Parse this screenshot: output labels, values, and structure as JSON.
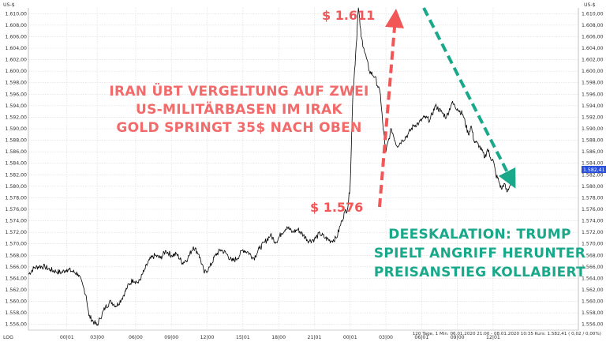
{
  "chart_data": {
    "type": "line",
    "axis_unit": "US-$",
    "corner_label": "LOG",
    "ylim": [
      1555,
      1611
    ],
    "y_ticks": [
      "1.556,00",
      "1.558,00",
      "1.560,00",
      "1.562,00",
      "1.564,00",
      "1.566,00",
      "1.568,00",
      "1.570,00",
      "1.572,00",
      "1.574,00",
      "1.576,00",
      "1.578,00",
      "1.580,00",
      "1.582,00",
      "1.584,00",
      "1.586,00",
      "1.588,00",
      "1.590,00",
      "1.592,00",
      "1.594,00",
      "1.596,00",
      "1.598,00",
      "1.600,00",
      "1.602,00",
      "1.604,00",
      "1.606,00",
      "1.608,00",
      "1.610,00"
    ],
    "y_tick_values": [
      1556,
      1558,
      1560,
      1562,
      1564,
      1566,
      1568,
      1570,
      1572,
      1574,
      1576,
      1578,
      1580,
      1582,
      1584,
      1586,
      1588,
      1590,
      1592,
      1594,
      1596,
      1598,
      1600,
      1602,
      1604,
      1606,
      1608,
      1610
    ],
    "x_ticks": [
      "00|01",
      "03|00",
      "06|00",
      "09|00",
      "12|00",
      "15|01",
      "18|00",
      "21|01",
      "00|01",
      "03|00",
      "06|01",
      "09|00",
      "12|01"
    ],
    "x_tick_values": [
      0.07,
      0.125,
      0.195,
      0.26,
      0.325,
      0.39,
      0.455,
      0.52,
      0.585,
      0.65,
      0.715,
      0.78,
      0.845
    ],
    "series": [
      {
        "x": [
          0.0,
          0.01,
          0.02,
          0.03,
          0.04,
          0.05,
          0.06,
          0.07,
          0.08,
          0.09,
          0.1,
          0.105,
          0.11,
          0.12,
          0.125,
          0.13,
          0.14,
          0.15,
          0.16,
          0.17,
          0.18,
          0.19,
          0.2,
          0.21,
          0.22,
          0.23,
          0.24,
          0.25,
          0.26,
          0.27,
          0.28,
          0.29,
          0.3,
          0.31,
          0.32,
          0.33,
          0.34,
          0.35,
          0.36,
          0.37,
          0.38,
          0.39,
          0.4,
          0.41,
          0.42,
          0.43,
          0.44,
          0.45,
          0.46,
          0.47,
          0.48,
          0.49,
          0.5,
          0.51,
          0.52,
          0.53,
          0.54,
          0.55,
          0.56,
          0.57,
          0.575,
          0.58,
          0.585,
          0.59,
          0.595,
          0.6,
          0.605,
          0.61,
          0.62,
          0.63,
          0.64,
          0.645,
          0.65,
          0.66,
          0.67,
          0.68,
          0.69,
          0.7,
          0.71,
          0.72,
          0.73,
          0.74,
          0.75,
          0.76,
          0.77,
          0.78,
          0.79,
          0.8,
          0.805,
          0.81,
          0.82,
          0.83,
          0.835,
          0.84,
          0.845,
          0.85,
          0.855,
          0.86,
          0.865,
          0.87,
          0.875,
          0.88
        ],
        "values": [
          1564.7,
          1565.8,
          1566.1,
          1566.0,
          1565.5,
          1565.2,
          1565.0,
          1565.6,
          1565.2,
          1564.8,
          1562.5,
          1561.0,
          1557.5,
          1556.3,
          1555.8,
          1557.0,
          1559.0,
          1560.0,
          1559.2,
          1560.5,
          1562.5,
          1563.8,
          1563.2,
          1565.2,
          1567.2,
          1568.0,
          1567.5,
          1568.8,
          1568.0,
          1568.2,
          1566.7,
          1567.5,
          1569.5,
          1568.2,
          1564.9,
          1566.0,
          1568.0,
          1569.0,
          1568.3,
          1567.0,
          1567.5,
          1569.0,
          1568.5,
          1567.5,
          1569.2,
          1570.3,
          1571.5,
          1570.3,
          1571.8,
          1573.0,
          1572.0,
          1572.5,
          1571.5,
          1570.5,
          1570.8,
          1571.8,
          1571.0,
          1570.5,
          1571.0,
          1574.0,
          1575.5,
          1576.0,
          1580.0,
          1596.0,
          1603.0,
          1611.0,
          1606.0,
          1604.0,
          1600.0,
          1599.0,
          1596.0,
          1590.0,
          1586.0,
          1590.0,
          1587.0,
          1588.0,
          1589.0,
          1590.5,
          1591.0,
          1592.0,
          1591.5,
          1594.0,
          1593.0,
          1592.0,
          1594.5,
          1593.5,
          1592.5,
          1589.0,
          1590.5,
          1588.0,
          1587.0,
          1585.0,
          1586.5,
          1585.0,
          1584.5,
          1582.0,
          1581.0,
          1579.5,
          1580.5,
          1579.0,
          1580.0,
          1582.4
        ]
      }
    ],
    "current_price_label": "1.582,41",
    "footer": "120 Tage, 1 Min. 06.01.2020 21:00 - 08.01.2020 10:35 Kurs: 1.582,41 ( 0,02 / 0,00%)",
    "annotations": {
      "red_lines": [
        "IRAN ÜBT VERGELTUNG AUF ZWEI",
        "US-MILITÄRBASEN IM IRAK",
        "GOLD SPRINGT 35$ NACH OBEN"
      ],
      "green_lines": [
        "DEESKALATION: TRUMP",
        "SPIELT ANGRIFF HERUNTER",
        "PREISANSTIEG KOLLABIERT"
      ],
      "low_price": "$ 1.576",
      "high_price": "$ 1.611"
    },
    "colors": {
      "line": "#000000",
      "red": "#f25757",
      "green": "#1aa88a",
      "price_tag": "#2a4fd8"
    }
  }
}
